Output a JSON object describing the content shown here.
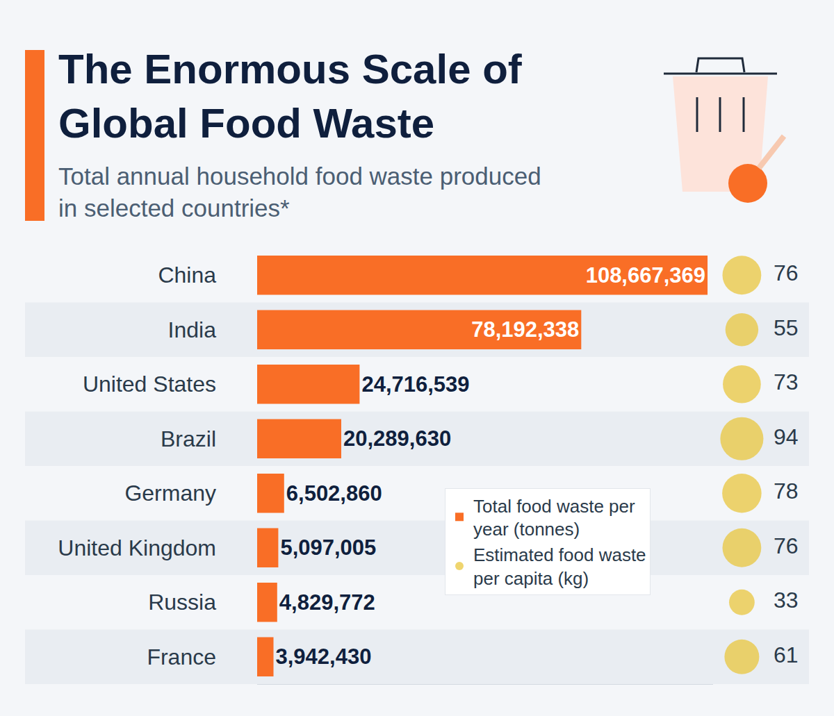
{
  "chart_data": {
    "type": "bar",
    "title": "The Enormous Scale of Global Food Waste",
    "subtitle": "Total annual household food waste produced in selected countries*",
    "orientation": "horizontal",
    "categories": [
      "China",
      "India",
      "United States",
      "Brazil",
      "Germany",
      "United Kingdom",
      "Russia",
      "France"
    ],
    "series": [
      {
        "name": "Total food waste per year (tonnes)",
        "type": "bar",
        "color": "#f96e26",
        "values": [
          108667369,
          78192338,
          24716539,
          20289630,
          6502860,
          5097005,
          4829772,
          3942430
        ],
        "value_labels": [
          "108,667,369",
          "78,192,338",
          "24,716,539",
          "20,289,630",
          "6,502,860",
          "5,097,005",
          "4,829,772",
          "3,942,430"
        ]
      },
      {
        "name": "Estimated food waste per capita (kg)",
        "type": "scatter",
        "marker": "circle",
        "color": "#e8c332",
        "values": [
          76,
          55,
          73,
          94,
          78,
          76,
          33,
          61
        ]
      }
    ],
    "xlim": [
      0,
      110000000
    ],
    "xticks": [],
    "data_labels": true,
    "tick_labels": "y",
    "legend": "right"
  }
}
